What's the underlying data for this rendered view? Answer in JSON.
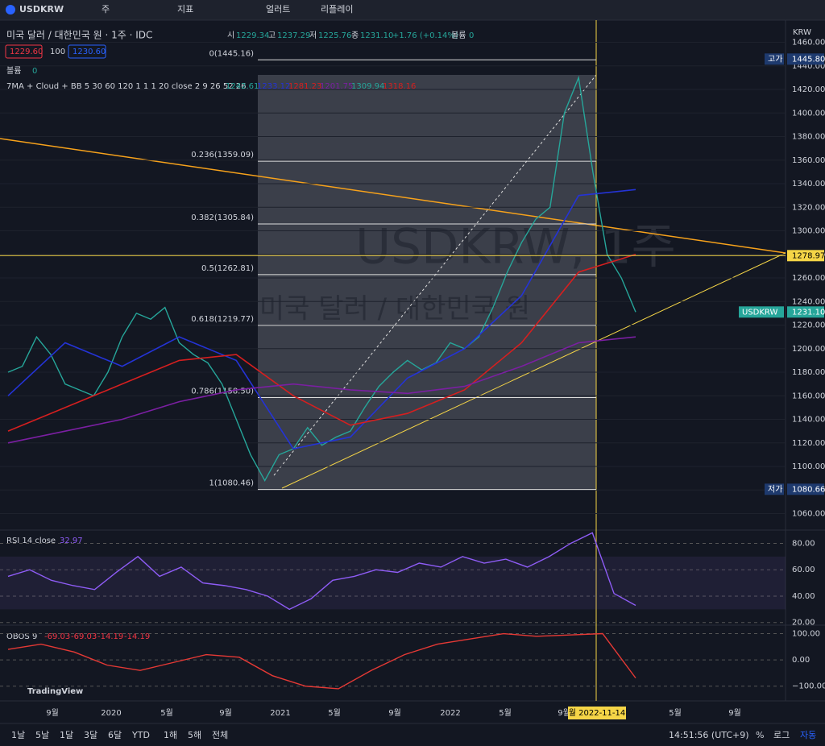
{
  "toolbar": {
    "symbol": "USDKRW",
    "interval": "주",
    "indicators": "지표",
    "alert": "얼러트",
    "replay": "리플레이"
  },
  "header": {
    "title": "미국 달러 / 대한민국 원 · 1주 · IDC",
    "open_label": "시",
    "open": "1229.34",
    "high_label": "고",
    "high": "1237.29",
    "low_label": "저",
    "low": "1225.76",
    "close_label": "종",
    "close": "1231.10",
    "change": "+1.76 (+0.14%)",
    "volume_label": "볼륨",
    "volume": "0",
    "bid": "1229.60",
    "spread": "100",
    "ask": "1230.60",
    "volume_row_label": "볼륨",
    "volume_row_value": "0"
  },
  "watermark": {
    "symbol": "USDKRW, 1주",
    "name": "미국 달러 / 대한민국 원"
  },
  "indicator_legend": {
    "name": "7MA + Cloud + BB 5 30 60 120 1 1 1 20 close 2 9 26 52 26",
    "values": [
      "1242.61",
      "1233.12",
      "1281.23",
      "1201.75",
      "1309.94",
      "1318.16"
    ]
  },
  "chart_data": [
    {
      "type": "line",
      "title": "USDKRW",
      "currency": "KRW",
      "ylim": [
        1046,
        1472
      ],
      "yticks": [
        {
          "value": 1460,
          "label": "1460.00"
        },
        {
          "value": 1440,
          "label": "1440.00"
        },
        {
          "value": 1420,
          "label": "1420.00"
        },
        {
          "value": 1400,
          "label": "1400.00"
        },
        {
          "value": 1380,
          "label": "1380.00"
        },
        {
          "value": 1360,
          "label": "1360.00"
        },
        {
          "value": 1340,
          "label": "1340.00"
        },
        {
          "value": 1320,
          "label": "1320.00"
        },
        {
          "value": 1300,
          "label": "1300.00"
        },
        {
          "value": 1280,
          "label": "1280.00"
        },
        {
          "value": 1260,
          "label": "1260.00"
        },
        {
          "value": 1240,
          "label": "1240.00"
        },
        {
          "value": 1220,
          "label": "1220.00"
        },
        {
          "value": 1200,
          "label": "1200.00"
        },
        {
          "value": 1180,
          "label": "1180.00"
        },
        {
          "value": 1160,
          "label": "1160.00"
        },
        {
          "value": 1140,
          "label": "1140.00"
        },
        {
          "value": 1120,
          "label": "1120.00"
        },
        {
          "value": 1100,
          "label": "1100.00"
        },
        {
          "value": 1080,
          "label": "1080.00"
        },
        {
          "value": 1060,
          "label": "1060.00"
        }
      ],
      "series": [
        {
          "name": "close",
          "color": "#26a69a",
          "values": [
            1180,
            1185,
            1210,
            1195,
            1170,
            1165,
            1160,
            1180,
            1210,
            1230,
            1225,
            1235,
            1205,
            1195,
            1188,
            1170,
            1140,
            1110,
            1088,
            1110,
            1115,
            1133,
            1118,
            1125,
            1130,
            1150,
            1168,
            1180,
            1190,
            1182,
            1188,
            1205,
            1200,
            1210,
            1235,
            1265,
            1290,
            1310,
            1320,
            1400,
            1430,
            1350,
            1280,
            1260,
            1231.1
          ]
        },
        {
          "name": "MA blue",
          "color": "#2433d6",
          "values": [
            1160,
            1205,
            1185,
            1210,
            1190,
            1115,
            1125,
            1175,
            1200,
            1245,
            1330,
            1335
          ]
        },
        {
          "name": "MA red",
          "color": "#d61f1f",
          "values": [
            1130,
            1150,
            1170,
            1190,
            1195,
            1160,
            1135,
            1145,
            1165,
            1205,
            1265,
            1280
          ]
        },
        {
          "name": "MA purple",
          "color": "#7b1fa2",
          "values": [
            1120,
            1130,
            1140,
            1155,
            1165,
            1170,
            1165,
            1162,
            1168,
            1185,
            1205,
            1210
          ]
        }
      ],
      "fib_levels": [
        {
          "value": 1445.16,
          "label": "0(1445.16)"
        },
        {
          "value": 1359.09,
          "label": "0.236(1359.09)"
        },
        {
          "value": 1305.84,
          "label": "0.382(1305.84)"
        },
        {
          "value": 1262.81,
          "label": "0.5(1262.81)"
        },
        {
          "value": 1219.77,
          "label": "0.618(1219.77)"
        },
        {
          "value": 1158.5,
          "label": "0.786(1158.50)"
        },
        {
          "value": 1080.46,
          "label": "1(1080.46)"
        }
      ],
      "badges": [
        {
          "name": "고가",
          "value": 1445.8,
          "label": "1445.80"
        },
        {
          "value": 1278.97,
          "label": "1278.97"
        },
        {
          "name": "USDKRW",
          "value": 1231.1,
          "label": "1231.10"
        },
        {
          "name": "저가",
          "value": 1080.66,
          "label": "1080.66"
        }
      ]
    },
    {
      "type": "line",
      "title": "RSI 14 close",
      "last": "32.97",
      "ylim": [
        18,
        87
      ],
      "yticks": [
        {
          "value": 80,
          "label": "80.00"
        },
        {
          "value": 60,
          "label": "60.00"
        },
        {
          "value": 40,
          "label": "40.00"
        },
        {
          "value": 20,
          "label": "20.00"
        }
      ],
      "series": [
        {
          "name": "RSI",
          "color": "#8e5cf5",
          "values": [
            55,
            60,
            52,
            48,
            45,
            58,
            70,
            55,
            62,
            50,
            48,
            45,
            40,
            30,
            38,
            52,
            55,
            60,
            58,
            65,
            62,
            70,
            65,
            68,
            62,
            70,
            80,
            88,
            42,
            32.97
          ]
        }
      ]
    },
    {
      "type": "line",
      "title": "OBOS 9",
      "legend_values": [
        "-69.03",
        "-69.03",
        "-14.19",
        "-14.19"
      ],
      "ylim": [
        -150,
        120
      ],
      "yticks": [
        {
          "value": 100,
          "label": "100.00"
        },
        {
          "value": 0,
          "label": "0.00"
        },
        {
          "value": -100,
          "label": "−100.00"
        }
      ],
      "series": [
        {
          "name": "OBOS",
          "color": "#e53935",
          "values": [
            40,
            60,
            30,
            -20,
            -40,
            -10,
            20,
            10,
            -60,
            -100,
            -110,
            -40,
            20,
            60,
            80,
            100,
            90,
            95,
            100,
            -69.03
          ]
        }
      ]
    }
  ],
  "x_axis": {
    "labels": [
      "9월",
      "2020",
      "5월",
      "9월",
      "2021",
      "5월",
      "9월",
      "2022",
      "5월",
      "9월",
      "5월",
      "9월"
    ],
    "crosshair": "월 2022-11-14"
  },
  "footer": {
    "ranges": [
      "1날",
      "5날",
      "1달",
      "3달",
      "6달",
      "YTD",
      "1해",
      "5해",
      "전체"
    ],
    "time": "14:51:56 (UTC+9)",
    "percent": "%",
    "log": "로그",
    "auto": "자동"
  },
  "brand": "TradingView"
}
